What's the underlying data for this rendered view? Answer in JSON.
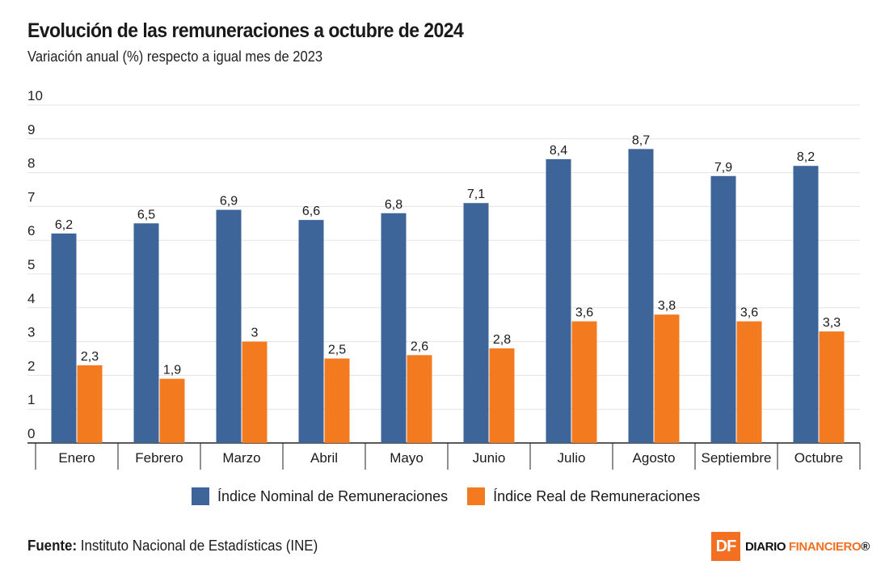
{
  "header": {
    "title": "Evolución de las remuneraciones a octubre de 2024",
    "subtitle": "Variación anual (%) respecto a igual mes de 2023"
  },
  "chart_data": {
    "type": "bar",
    "categories": [
      "Enero",
      "Febrero",
      "Marzo",
      "Abril",
      "Mayo",
      "Junio",
      "Julio",
      "Agosto",
      "Septiembre",
      "Octubre"
    ],
    "series": [
      {
        "name": "Índice Nominal de Remuneraciones",
        "values": [
          6.2,
          6.5,
          6.9,
          6.6,
          6.8,
          7.1,
          8.4,
          8.7,
          7.9,
          8.2
        ],
        "labels": [
          "6,2",
          "6,5",
          "6,9",
          "6,6",
          "6,8",
          "7,1",
          "8,4",
          "8,7",
          "7,9",
          "8,2"
        ],
        "color": "#3e6599"
      },
      {
        "name": "Índice Real de Remuneraciones",
        "values": [
          2.3,
          1.9,
          3.0,
          2.5,
          2.6,
          2.8,
          3.6,
          3.8,
          3.6,
          3.3
        ],
        "labels": [
          "2,3",
          "1,9",
          "3",
          "2,5",
          "2,6",
          "2,8",
          "3,6",
          "3,8",
          "3,6",
          "3,3"
        ],
        "color": "#f47a20"
      }
    ],
    "yticks": [
      "0",
      "1",
      "2",
      "3",
      "4",
      "5",
      "6",
      "7",
      "8",
      "9",
      "10"
    ],
    "ylim": [
      0,
      10
    ],
    "grid": true,
    "legend": "bottom"
  },
  "source": {
    "label": "Fuente:",
    "text": " Instituto Nacional de Estadísticas (INE)"
  },
  "logo": {
    "mark": "DF",
    "word1": "DIARIO ",
    "word2": "FINANCIERO",
    "trademark": "®"
  }
}
